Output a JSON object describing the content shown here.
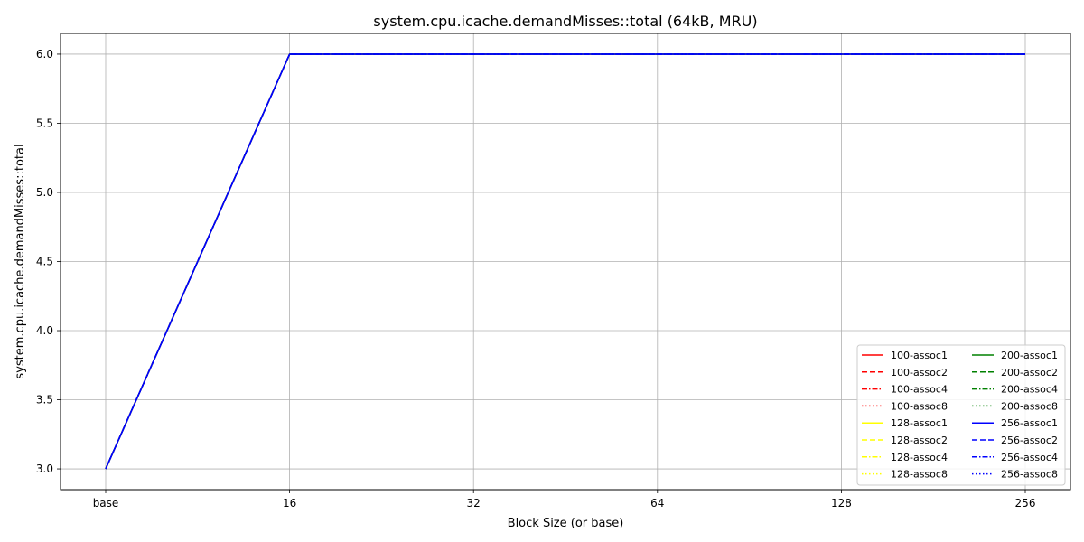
{
  "chart_data": {
    "type": "line",
    "title": "system.cpu.icache.demandMisses::total (64kB, MRU)",
    "xlabel": "Block Size (or base)",
    "ylabel": "system.cpu.icache.demandMisses::total",
    "categories": [
      "base",
      "16",
      "32",
      "64",
      "128",
      "256"
    ],
    "y_ticks": [
      "3.0",
      "3.5",
      "4.0",
      "4.5",
      "5.0",
      "5.5",
      "6.0"
    ],
    "ylim": [
      2.85,
      6.15
    ],
    "grid": true,
    "legend_position": "lower-right",
    "legend_columns": 2,
    "series": [
      {
        "name": "100-assoc1",
        "color": "#ff0000",
        "dash": "solid",
        "values": [
          3,
          6,
          6,
          6,
          6,
          6
        ]
      },
      {
        "name": "100-assoc2",
        "color": "#ff0000",
        "dash": "dashed",
        "values": [
          3,
          6,
          6,
          6,
          6,
          6
        ]
      },
      {
        "name": "100-assoc4",
        "color": "#ff0000",
        "dash": "dashdot",
        "values": [
          3,
          6,
          6,
          6,
          6,
          6
        ]
      },
      {
        "name": "100-assoc8",
        "color": "#ff0000",
        "dash": "dotted",
        "values": [
          3,
          6,
          6,
          6,
          6,
          6
        ]
      },
      {
        "name": "128-assoc1",
        "color": "#ffff00",
        "dash": "solid",
        "values": [
          3,
          6,
          6,
          6,
          6,
          6
        ]
      },
      {
        "name": "128-assoc2",
        "color": "#ffff00",
        "dash": "dashed",
        "values": [
          3,
          6,
          6,
          6,
          6,
          6
        ]
      },
      {
        "name": "128-assoc4",
        "color": "#ffff00",
        "dash": "dashdot",
        "values": [
          3,
          6,
          6,
          6,
          6,
          6
        ]
      },
      {
        "name": "128-assoc8",
        "color": "#ffff00",
        "dash": "dotted",
        "values": [
          3,
          6,
          6,
          6,
          6,
          6
        ]
      },
      {
        "name": "200-assoc1",
        "color": "#008000",
        "dash": "solid",
        "values": [
          3,
          6,
          6,
          6,
          6,
          6
        ]
      },
      {
        "name": "200-assoc2",
        "color": "#008000",
        "dash": "dashed",
        "values": [
          3,
          6,
          6,
          6,
          6,
          6
        ]
      },
      {
        "name": "200-assoc4",
        "color": "#008000",
        "dash": "dashdot",
        "values": [
          3,
          6,
          6,
          6,
          6,
          6
        ]
      },
      {
        "name": "200-assoc8",
        "color": "#008000",
        "dash": "dotted",
        "values": [
          3,
          6,
          6,
          6,
          6,
          6
        ]
      },
      {
        "name": "256-assoc1",
        "color": "#0000ff",
        "dash": "solid",
        "values": [
          3,
          6,
          6,
          6,
          6,
          6
        ]
      },
      {
        "name": "256-assoc2",
        "color": "#0000ff",
        "dash": "dashed",
        "values": [
          3,
          6,
          6,
          6,
          6,
          6
        ]
      },
      {
        "name": "256-assoc4",
        "color": "#0000ff",
        "dash": "dashdot",
        "values": [
          3,
          6,
          6,
          6,
          6,
          6
        ]
      },
      {
        "name": "256-assoc8",
        "color": "#0000ff",
        "dash": "dotted",
        "values": [
          3,
          6,
          6,
          6,
          6,
          6
        ]
      }
    ]
  }
}
